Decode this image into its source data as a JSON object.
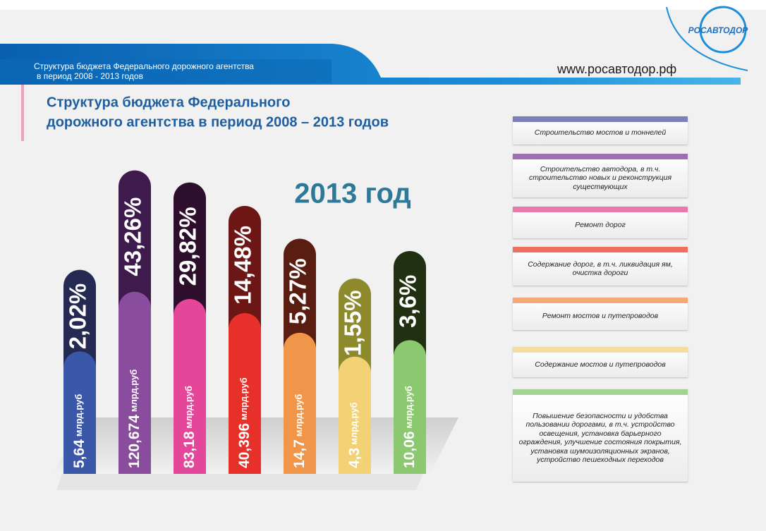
{
  "header": {
    "subtitle_lines": [
      "Структура бюджета Федерального дорожного агентства",
      "в период 2008 - 2013 годов"
    ],
    "url": "www.росавтодор.рф",
    "logo_text": "РОСАВТОДОР"
  },
  "chart_data": {
    "type": "bar",
    "title_lines": [
      "Структура бюджета Федерального",
      "дорожного агентства в период 2008 – 2013 годов"
    ],
    "subtitle": "2013 год",
    "categories": [
      "Строительство мостов и тоннелей",
      "Строительство автодора, в т.ч. строительство новых и реконструкция существующих",
      "Ремонт дорог",
      "Содержание дорог, в т.ч. ликвидация ям, очистка дороги",
      "Ремонт мостов и путепроводов",
      "Содержание мостов и путепроводов",
      "Повышение безопасности и удобства пользовании дорогами, в т.ч. устройство освещения, установка барьерного ограждения, улучшение состояния покрытия, установка шумоизоляционных экранов, устройство пешеходных переходов"
    ],
    "values": [
      2.02,
      43.26,
      29.82,
      14.48,
      5.27,
      1.55,
      3.6
    ],
    "value_labels": [
      "2,02%",
      "43,26%",
      "29,82%",
      "14,48%",
      "5,27%",
      "1,55%",
      "3,6%"
    ],
    "amounts": [
      5.64,
      120.674,
      83.18,
      40.396,
      14.7,
      4.3,
      10.06
    ],
    "amount_labels": [
      "5,64",
      "120,674",
      "83,18",
      "40,396",
      "14,7",
      "4,3",
      "10,06"
    ],
    "amount_unit": "млрд.руб",
    "colors": [
      "#242a52",
      "#3e1b4c",
      "#2d0f2d",
      "#6c1616",
      "#5a1d12",
      "#8c8a2c",
      "#203010"
    ],
    "light_colors": [
      "#3b57a8",
      "#8a4c9c",
      "#e4479a",
      "#e8302a",
      "#f0964a",
      "#f2d274",
      "#8cc870"
    ],
    "legend_colors": [
      "#7b80b8",
      "#9c70b0",
      "#e87aab",
      "#ef705e",
      "#f4aa78",
      "#f4dca2",
      "#a2d392"
    ],
    "log_scale": true
  }
}
